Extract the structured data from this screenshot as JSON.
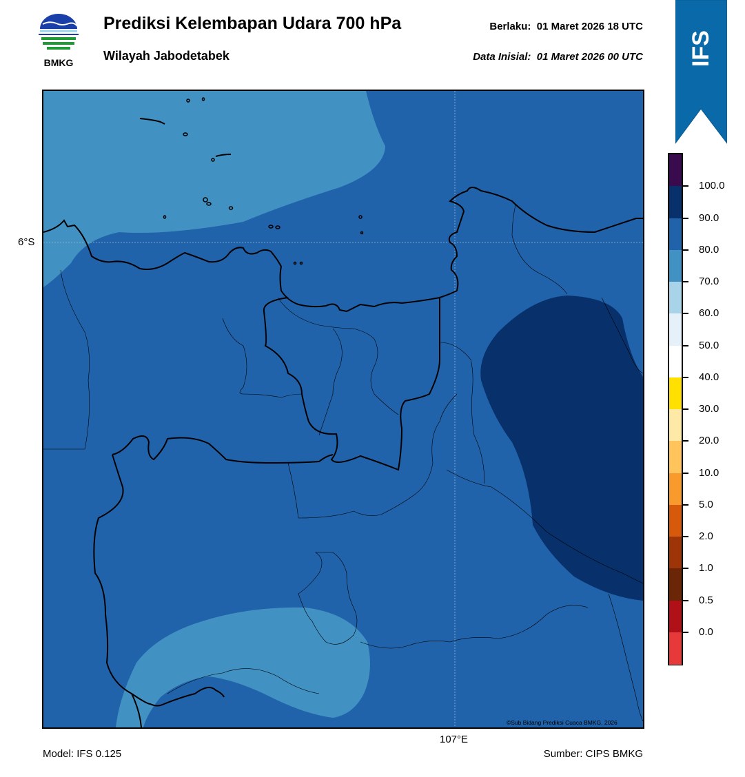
{
  "header": {
    "logo_text": "BMKG",
    "title": "Prediksi Kelembapan Udara 700 hPa",
    "subtitle": "Wilayah Jabodetabek",
    "valid_label": "Berlaku:",
    "valid_time": "01 Maret 2026 18 UTC",
    "init_label": "Data Inisial:",
    "init_time": "01 Maret 2026 00 UTC"
  },
  "banner": {
    "text": "IFS",
    "color": "#0a6aa9"
  },
  "map": {
    "lat_label": "6°S",
    "lon_label": "107°E",
    "credit": "©Sub Bidang Prediksi Cuaca BMKG, 2026",
    "colors": {
      "base": "#2163ab",
      "light": "#4191c3",
      "dark": "#08306b",
      "boundary": "#000000"
    }
  },
  "footer": {
    "model": "Model: IFS 0.125",
    "source": "Sumber: CIPS BMKG"
  },
  "colorbar": {
    "labels": [
      "100.0",
      "90.0",
      "80.0",
      "70.0",
      "60.0",
      "50.0",
      "40.0",
      "30.0",
      "20.0",
      "10.0",
      "5.0",
      "2.0",
      "1.0",
      "0.5",
      "0.0"
    ],
    "colors": [
      "#3a0a4f",
      "#08306b",
      "#2163ab",
      "#4191c3",
      "#a9d3e8",
      "#e6f0f8",
      "#ffffff",
      "#ffe000",
      "#ffe9a6",
      "#ffc45c",
      "#f99a2c",
      "#d75a0c",
      "#9e3508",
      "#6a2606",
      "#b01018",
      "#e8393a"
    ]
  }
}
